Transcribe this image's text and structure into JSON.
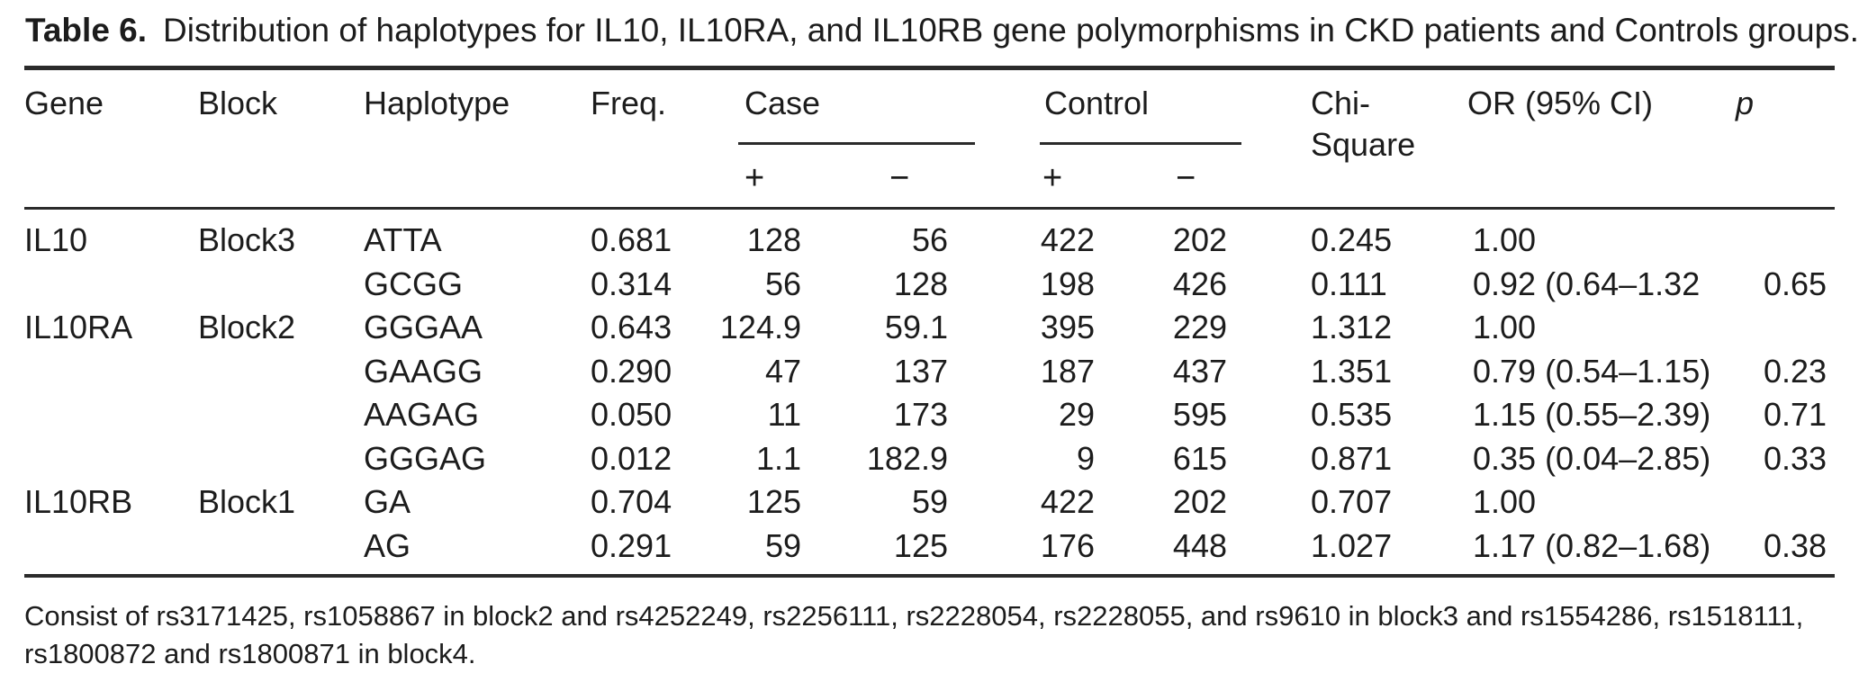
{
  "caption": {
    "label": "Table 6.",
    "text": "Distribution of haplotypes for IL10, IL10RA, and IL10RB gene polymorphisms in CKD patients and Controls groups."
  },
  "table": {
    "header": {
      "gene": "Gene",
      "block": "Block",
      "haplotype": "Haplotype",
      "freq": "Freq.",
      "case": "Case",
      "control": "Control",
      "chi_square": "Chi-Square",
      "or_ci": "OR (95% CI)",
      "p": "p",
      "plus": "+",
      "minus": "−"
    },
    "rows": [
      {
        "gene": "IL10",
        "block": "Block3",
        "haplotype": "ATTA",
        "freq": "0.681",
        "case_pos": "128",
        "case_neg": "56",
        "ctrl_pos": "422",
        "ctrl_neg": "202",
        "chi": "0.245",
        "or_ci": "1.00",
        "p": ""
      },
      {
        "gene": "",
        "block": "",
        "haplotype": "GCGG",
        "freq": "0.314",
        "case_pos": "56",
        "case_neg": "128",
        "ctrl_pos": "198",
        "ctrl_neg": "426",
        "chi": "0.111",
        "or_ci": "0.92 (0.64–1.32",
        "p": "0.65"
      },
      {
        "gene": "IL10RA",
        "block": "Block2",
        "haplotype": "GGGAA",
        "freq": "0.643",
        "case_pos": "124.9",
        "case_neg": "59.1",
        "ctrl_pos": "395",
        "ctrl_neg": "229",
        "chi": "1.312",
        "or_ci": "1.00",
        "p": ""
      },
      {
        "gene": "",
        "block": "",
        "haplotype": "GAAGG",
        "freq": "0.290",
        "case_pos": "47",
        "case_neg": "137",
        "ctrl_pos": "187",
        "ctrl_neg": "437",
        "chi": "1.351",
        "or_ci": "0.79 (0.54–1.15)",
        "p": "0.23"
      },
      {
        "gene": "",
        "block": "",
        "haplotype": "AAGAG",
        "freq": "0.050",
        "case_pos": "11",
        "case_neg": "173",
        "ctrl_pos": "29",
        "ctrl_neg": "595",
        "chi": "0.535",
        "or_ci": "1.15 (0.55–2.39)",
        "p": "0.71"
      },
      {
        "gene": "",
        "block": "",
        "haplotype": "GGGAG",
        "freq": "0.012",
        "case_pos": "1.1",
        "case_neg": "182.9",
        "ctrl_pos": "9",
        "ctrl_neg": "615",
        "chi": "0.871",
        "or_ci": "0.35 (0.04–2.85)",
        "p": "0.33"
      },
      {
        "gene": "IL10RB",
        "block": "Block1",
        "haplotype": "GA",
        "freq": "0.704",
        "case_pos": "125",
        "case_neg": "59",
        "ctrl_pos": "422",
        "ctrl_neg": "202",
        "chi": "0.707",
        "or_ci": "1.00",
        "p": ""
      },
      {
        "gene": "",
        "block": "",
        "haplotype": "AG",
        "freq": "0.291",
        "case_pos": "59",
        "case_neg": "125",
        "ctrl_pos": "176",
        "ctrl_neg": "448",
        "chi": "1.027",
        "or_ci": "1.17 (0.82–1.68)",
        "p": "0.38"
      }
    ]
  },
  "footnote": {
    "line1": "Consist of rs3171425, rs1058867 in block2 and rs4252249, rs2256111, rs2228054, rs2228055, and rs9610 in block3 and rs1554286, rs1518111,",
    "line2": "rs1800872 and rs1800871 in block4."
  },
  "colors": {
    "text": "#1c1c1c",
    "rule": "#2b2b2b",
    "background": "#ffffff"
  }
}
